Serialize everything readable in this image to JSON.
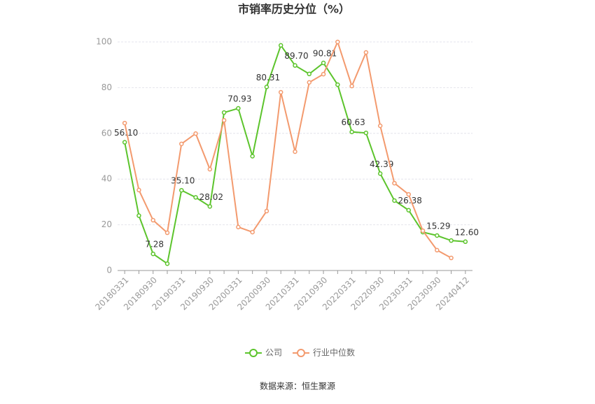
{
  "chart_data": {
    "type": "line",
    "title": "市销率历史分位（%）",
    "source": "数据来源：恒生聚源",
    "categories": [
      "20180331",
      null,
      "20180930",
      null,
      "20190331",
      null,
      "20190930",
      null,
      "20200331",
      null,
      "20200930",
      null,
      "20210331",
      null,
      "20210930",
      null,
      "20220331",
      null,
      "20220930",
      null,
      "20230331",
      null,
      "20230930",
      null,
      "20240412"
    ],
    "series": [
      {
        "name": "公司",
        "color": "#5cc42c",
        "values": [
          56.1,
          24,
          7.28,
          3,
          35.1,
          32,
          28.02,
          69.1,
          70.93,
          50,
          80.31,
          98.5,
          89.7,
          86,
          90.81,
          81.3,
          60.63,
          60.2,
          42.39,
          30.6,
          26.38,
          16.8,
          15.29,
          13.1,
          12.6
        ],
        "value_labels": [
          "56.10",
          null,
          "7.28",
          null,
          "35.10",
          null,
          "28.02",
          null,
          "70.93",
          null,
          "80.31",
          null,
          "89.70",
          null,
          "90.81",
          null,
          "60.63",
          null,
          "42.39",
          null,
          "26.38",
          null,
          "15.29",
          null,
          "12.60"
        ]
      },
      {
        "name": "行业中位数",
        "color": "#f39a6e",
        "values": [
          64.5,
          35.2,
          22,
          16.5,
          55.4,
          59.9,
          44.3,
          65.7,
          19,
          16.8,
          26,
          78,
          52,
          82.3,
          85.9,
          100,
          80.7,
          95.4,
          63.3,
          38.2,
          33.3,
          17.4,
          8.9,
          5.5,
          null
        ]
      }
    ],
    "ylim": [
      0,
      100
    ],
    "yticks": [
      0,
      20,
      40,
      60,
      80,
      100
    ],
    "grid": true,
    "legend": "bottom"
  }
}
